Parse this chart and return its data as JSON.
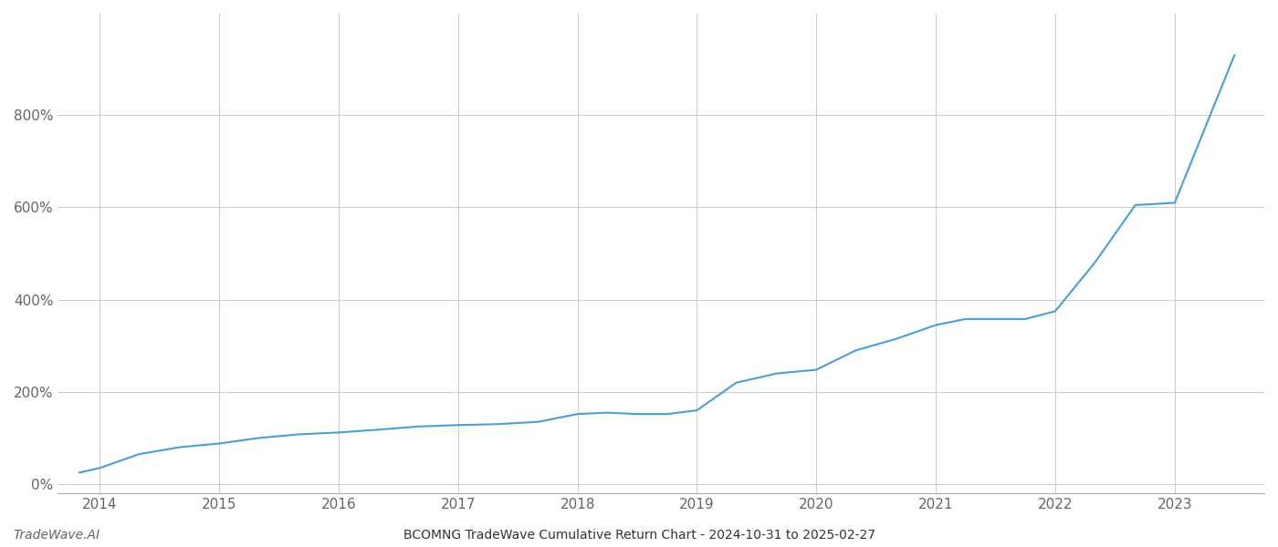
{
  "title": "BCOMNG TradeWave Cumulative Return Chart - 2024-10-31 to 2025-02-27",
  "watermark": "TradeWave.AI",
  "line_color": "#4a9fd4",
  "background_color": "#ffffff",
  "grid_color": "#cccccc",
  "x_years": [
    2014,
    2015,
    2016,
    2017,
    2018,
    2019,
    2020,
    2021,
    2022,
    2023
  ],
  "x_data": [
    2013.83,
    2014.0,
    2014.33,
    2014.67,
    2015.0,
    2015.33,
    2015.67,
    2016.0,
    2016.33,
    2016.67,
    2017.0,
    2017.33,
    2017.67,
    2018.0,
    2018.25,
    2018.5,
    2018.75,
    2019.0,
    2019.33,
    2019.67,
    2020.0,
    2020.33,
    2020.67,
    2021.0,
    2021.25,
    2021.5,
    2021.75,
    2022.0,
    2022.33,
    2022.67,
    2023.0,
    2023.5
  ],
  "y_data": [
    25,
    35,
    65,
    80,
    88,
    100,
    108,
    112,
    118,
    125,
    128,
    130,
    135,
    152,
    155,
    152,
    152,
    160,
    220,
    240,
    248,
    290,
    315,
    345,
    358,
    358,
    358,
    375,
    480,
    605,
    610,
    930
  ],
  "yticks": [
    0,
    200,
    400,
    600,
    800
  ],
  "ylim": [
    -20,
    1020
  ],
  "xlim": [
    2013.65,
    2023.75
  ],
  "line_width": 1.5,
  "title_fontsize": 10,
  "watermark_fontsize": 10,
  "tick_fontsize": 11,
  "tick_color": "#666666",
  "spine_color": "#aaaaaa"
}
